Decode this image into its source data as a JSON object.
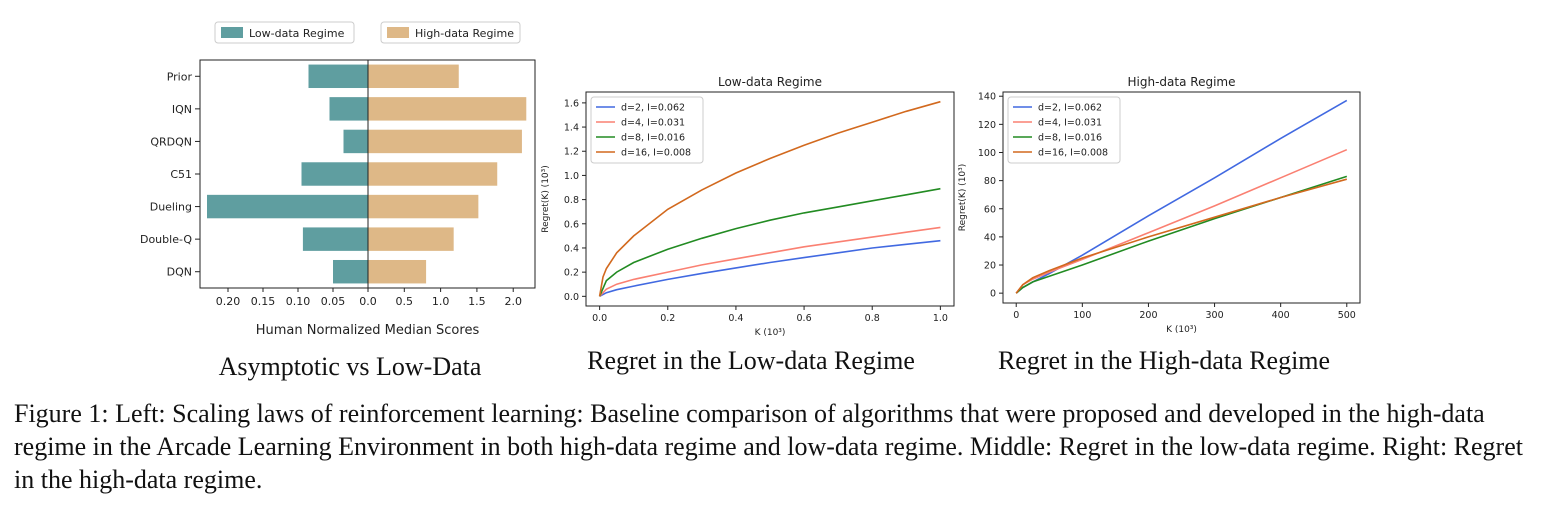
{
  "chart_data": [
    {
      "type": "bar",
      "orientation": "horizontal",
      "legend_position": "top",
      "categories": [
        "Prior",
        "IQN",
        "QRDQN",
        "C51",
        "Dueling",
        "Double-Q",
        "DQN"
      ],
      "series": [
        {
          "name": "Low-data Regime",
          "color": "#5f9ea0",
          "values": [
            0.085,
            0.055,
            0.035,
            0.095,
            0.23,
            0.093,
            0.05
          ]
        },
        {
          "name": "High-data Regime",
          "color": "#deb887",
          "values": [
            1.25,
            2.18,
            2.12,
            1.78,
            1.52,
            1.18,
            0.8
          ]
        }
      ],
      "xlabel": "Human Normalized Median Scores",
      "xticks_low": [
        "0.20",
        "0.15",
        "0.10",
        "0.05"
      ],
      "xticks_high": [
        "0.0",
        "0.5",
        "1.0",
        "1.5",
        "2.0"
      ],
      "xlim_low": [
        0.24,
        0
      ],
      "xlim_high": [
        0,
        2.3
      ]
    },
    {
      "type": "line",
      "title": "Low-data Regime",
      "xlabel": "K (10³)",
      "ylabel": "Regret(K) (10³)",
      "xlim": [
        -0.04,
        1.04
      ],
      "ylim": [
        -0.08,
        1.69
      ],
      "xticks": [
        0.0,
        0.2,
        0.4,
        0.6,
        0.8,
        1.0
      ],
      "yticks": [
        0.0,
        0.2,
        0.4,
        0.6,
        0.8,
        1.0,
        1.2,
        1.4,
        1.6
      ],
      "legend_position": "top-left",
      "series": [
        {
          "name": "d=2, I=0.062",
          "color": "#4169e1",
          "x": [
            0,
            0.02,
            0.05,
            0.1,
            0.2,
            0.3,
            0.4,
            0.5,
            0.6,
            0.7,
            0.8,
            0.9,
            1.0
          ],
          "y": [
            0,
            0.03,
            0.055,
            0.085,
            0.14,
            0.19,
            0.235,
            0.28,
            0.32,
            0.36,
            0.4,
            0.43,
            0.46
          ]
        },
        {
          "name": "d=4, I=0.031",
          "color": "#fa8072",
          "x": [
            0,
            0.02,
            0.05,
            0.1,
            0.2,
            0.3,
            0.4,
            0.5,
            0.6,
            0.7,
            0.8,
            0.9,
            1.0
          ],
          "y": [
            0,
            0.06,
            0.1,
            0.14,
            0.2,
            0.26,
            0.31,
            0.36,
            0.41,
            0.45,
            0.49,
            0.53,
            0.57
          ]
        },
        {
          "name": "d=8, I=0.016",
          "color": "#228b22",
          "x": [
            0,
            0.02,
            0.05,
            0.1,
            0.2,
            0.3,
            0.4,
            0.5,
            0.6,
            0.7,
            0.8,
            0.9,
            1.0
          ],
          "y": [
            0,
            0.13,
            0.2,
            0.28,
            0.39,
            0.48,
            0.56,
            0.63,
            0.69,
            0.74,
            0.79,
            0.84,
            0.89
          ]
        },
        {
          "name": "d=16, I=0.008",
          "color": "#d2691e",
          "x": [
            0,
            0.01,
            0.02,
            0.05,
            0.1,
            0.2,
            0.3,
            0.4,
            0.5,
            0.6,
            0.7,
            0.8,
            0.9,
            1.0
          ],
          "y": [
            0,
            0.16,
            0.23,
            0.36,
            0.5,
            0.72,
            0.88,
            1.02,
            1.14,
            1.25,
            1.35,
            1.44,
            1.53,
            1.61
          ]
        }
      ]
    },
    {
      "type": "line",
      "title": "High-data Regime",
      "xlabel": "K (10³)",
      "ylabel": "Regret(K) (10³)",
      "xlim": [
        -20,
        520
      ],
      "ylim": [
        -7,
        143
      ],
      "xticks": [
        0,
        100,
        200,
        300,
        400,
        500
      ],
      "yticks": [
        0,
        20,
        40,
        60,
        80,
        100,
        120,
        140
      ],
      "legend_position": "top-left",
      "series": [
        {
          "name": "d=2, I=0.062",
          "color": "#4169e1",
          "x": [
            0,
            10,
            25,
            50,
            100,
            200,
            300,
            400,
            500
          ],
          "y": [
            0,
            4,
            8,
            14,
            27,
            55,
            82,
            110,
            137
          ]
        },
        {
          "name": "d=4, I=0.031",
          "color": "#fa8072",
          "x": [
            0,
            10,
            25,
            50,
            100,
            200,
            300,
            400,
            500
          ],
          "y": [
            0,
            6,
            10,
            15,
            24,
            43,
            62,
            82,
            102
          ]
        },
        {
          "name": "d=8, I=0.016",
          "color": "#228b22",
          "x": [
            0,
            10,
            25,
            50,
            100,
            200,
            300,
            400,
            500
          ],
          "y": [
            0,
            4,
            8,
            12,
            20,
            37,
            53,
            68,
            83
          ]
        },
        {
          "name": "d=16, I=0.008",
          "color": "#d2691e",
          "x": [
            0,
            10,
            25,
            50,
            100,
            200,
            300,
            400,
            500
          ],
          "y": [
            0,
            6,
            11,
            16,
            25,
            40,
            54,
            68,
            81
          ]
        }
      ]
    }
  ],
  "subcaptions": {
    "left": "Asymptotic vs Low-Data",
    "middle": "Regret in the Low-data Regime",
    "right": "Regret in the High-data Regime"
  },
  "caption": "Figure 1: Left: Scaling laws of reinforcement learning: Baseline comparison of algorithms that were proposed and developed in the high-data regime in the Arcade Learning Environment in both high-data regime and low-data regime. Middle: Regret in the low-data regime. Right: Regret in the high-data regime."
}
